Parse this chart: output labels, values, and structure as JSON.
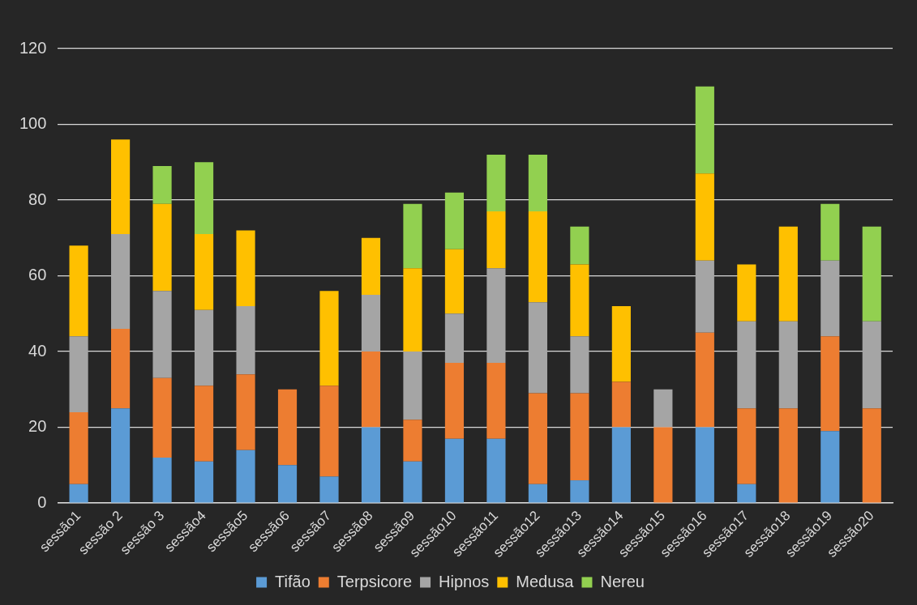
{
  "chart_data": {
    "type": "bar",
    "stacked": true,
    "categories": [
      "sessão1",
      "sessão 2",
      "sessão 3",
      "sessão4",
      "sessão5",
      "sessão6",
      "sessão7",
      "sessão8",
      "sessão9",
      "sessão10",
      "sessão11",
      "sessão12",
      "sessão13",
      "sessão14",
      "sessão15",
      "sessão16",
      "sessão17",
      "sessão18",
      "sessão19",
      "sessão20"
    ],
    "series": [
      {
        "name": "Tifão",
        "color": "#5b9bd5",
        "values": [
          5,
          25,
          12,
          11,
          14,
          10,
          7,
          20,
          11,
          17,
          17,
          5,
          6,
          20,
          0,
          20,
          5,
          0,
          19,
          0
        ]
      },
      {
        "name": "Terpsicore",
        "color": "#ed7d31",
        "values": [
          19,
          21,
          21,
          20,
          20,
          20,
          24,
          20,
          11,
          20,
          20,
          24,
          23,
          12,
          20,
          25,
          20,
          25,
          25,
          25
        ]
      },
      {
        "name": "Hipnos",
        "color": "#a5a5a5",
        "values": [
          20,
          25,
          23,
          20,
          18,
          0,
          0,
          15,
          18,
          13,
          25,
          24,
          15,
          0,
          10,
          19,
          23,
          23,
          20,
          23
        ]
      },
      {
        "name": "Medusa",
        "color": "#ffc000",
        "values": [
          24,
          25,
          23,
          20,
          20,
          0,
          25,
          15,
          22,
          17,
          15,
          24,
          19,
          20,
          0,
          23,
          15,
          25,
          0,
          0
        ]
      },
      {
        "name": "Nereu",
        "color": "#92d050",
        "values": [
          0,
          0,
          10,
          19,
          0,
          0,
          0,
          0,
          17,
          15,
          15,
          15,
          10,
          0,
          0,
          23,
          0,
          0,
          15,
          25
        ]
      }
    ],
    "ylim": [
      0,
      120
    ],
    "yticks": [
      0,
      20,
      40,
      60,
      80,
      100,
      120
    ],
    "grid": "y",
    "legend": "bottom"
  }
}
